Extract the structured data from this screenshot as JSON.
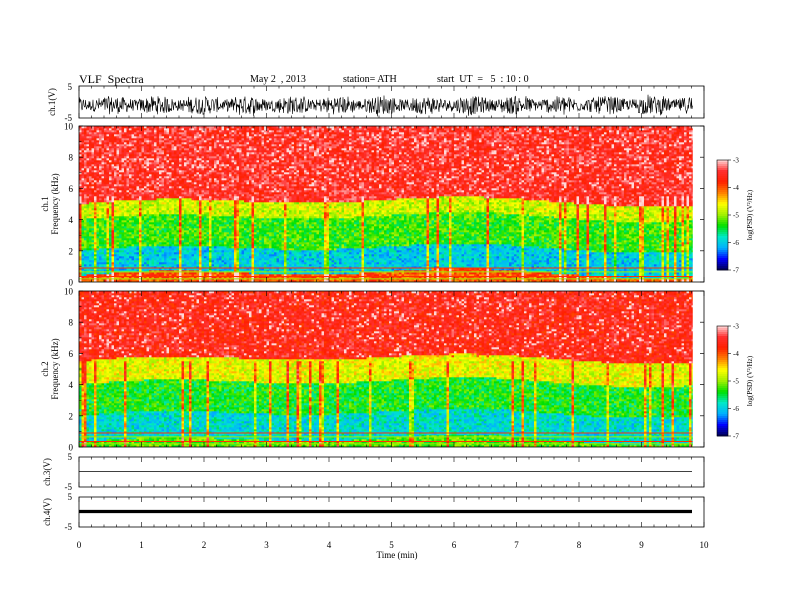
{
  "header": {
    "title": "VLF  Spectra",
    "date": "May 2  , 2013",
    "station": "station= ATH",
    "start": "start  UT  =   5  : 10 : 0"
  },
  "x_axis": {
    "label": "Time  (min)",
    "ticks": [
      "0",
      "1",
      "2",
      "3",
      "4",
      "5",
      "6",
      "7",
      "8",
      "9",
      "10"
    ],
    "range": [
      0,
      10
    ]
  },
  "chart_data": [
    {
      "type": "line",
      "name": "ch.1(V) waveform",
      "ylabel": "ch.1(V)",
      "ylim": [
        -5,
        5
      ],
      "yticks": [
        "5",
        "-5"
      ],
      "xlim": [
        0,
        10
      ],
      "data_end_min": 9.82,
      "description_level": "noisy broadband signal, mean ~ -1 V, peak-to-peak ~ 4 V"
    },
    {
      "type": "heatmap",
      "name": "ch.1 spectrogram",
      "ylabel_outer": "ch.1",
      "ylabel": "Frequency  (kHz)",
      "ylim": [
        0,
        10
      ],
      "yticks": [
        "0",
        "2",
        "4",
        "6",
        "8",
        "10"
      ],
      "xlim": [
        0,
        10
      ],
      "data_end_min": 9.82,
      "colorbar": {
        "label": "log(PSD) (V²/Hz)",
        "range": [
          -7,
          -3
        ],
        "ticks": [
          "-3",
          "-4",
          "-5",
          "-6",
          "-7"
        ]
      },
      "bands": [
        {
          "freq_khz": [
            5.0,
            10.0
          ],
          "log_psd": -3.5
        },
        {
          "freq_khz": [
            4.0,
            5.0
          ],
          "log_psd": -4.8
        },
        {
          "freq_khz": [
            2.0,
            4.0
          ],
          "log_psd": -5.3
        },
        {
          "freq_khz": [
            0.4,
            2.0
          ],
          "log_psd": -6.0
        },
        {
          "freq_khz": [
            0.0,
            0.4
          ],
          "log_psd": -4.0
        }
      ]
    },
    {
      "type": "heatmap",
      "name": "ch.2 spectrogram",
      "ylabel_outer": "ch.2",
      "ylabel": "Frequency  (kHz)",
      "ylim": [
        0,
        10
      ],
      "yticks": [
        "0",
        "2",
        "4",
        "6",
        "8",
        "10"
      ],
      "xlim": [
        0,
        10
      ],
      "data_end_min": 9.82,
      "colorbar": {
        "label": "log(PSD) (V²/Hz)",
        "range": [
          -7,
          -3
        ],
        "ticks": [
          "-3",
          "-4",
          "-5",
          "-6",
          "-7"
        ]
      },
      "bands": [
        {
          "freq_khz": [
            5.5,
            10.0
          ],
          "log_psd": -3.6
        },
        {
          "freq_khz": [
            4.0,
            5.5
          ],
          "log_psd": -4.7
        },
        {
          "freq_khz": [
            2.0,
            4.0
          ],
          "log_psd": -5.4
        },
        {
          "freq_khz": [
            0.3,
            2.0
          ],
          "log_psd": -5.9
        },
        {
          "freq_khz": [
            0.0,
            0.3
          ],
          "log_psd": -5.2
        }
      ]
    },
    {
      "type": "line",
      "name": "ch.3(V) waveform",
      "ylabel": "ch.3(V)",
      "ylim": [
        -5,
        5
      ],
      "yticks": [
        "5",
        "-5"
      ],
      "xlim": [
        0,
        10
      ],
      "data_end_min": 9.82,
      "description_level": "near-flat trace slightly below 0 V"
    },
    {
      "type": "line",
      "name": "ch.4(V) waveform",
      "ylabel": "ch.4(V)",
      "ylim": [
        -5,
        5
      ],
      "yticks": [
        "5",
        "-5"
      ],
      "xlim": [
        0,
        10
      ],
      "data_end_min": 9.82,
      "description_level": "thick flat trace near 0 V"
    }
  ],
  "colors": {
    "colormap": [
      "#000050",
      "#0000ff",
      "#00b0ff",
      "#00e8c8",
      "#00e000",
      "#a0f000",
      "#ffff00",
      "#ff8000",
      "#ff2000",
      "#ff3030",
      "#ffd8d8"
    ]
  }
}
